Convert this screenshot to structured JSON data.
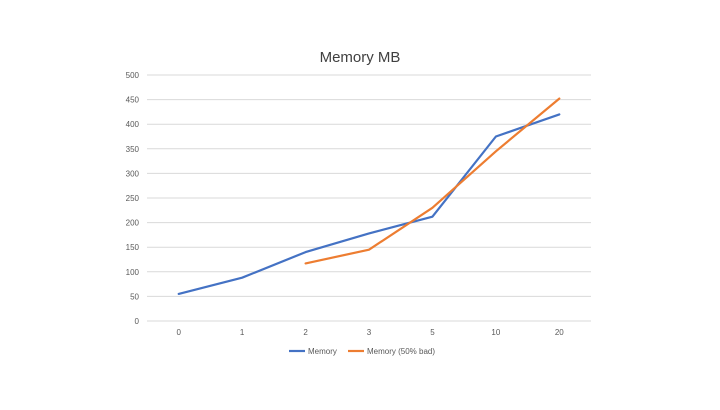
{
  "chart_data": {
    "type": "line",
    "title": "Memory MB",
    "categories": [
      "0",
      "1",
      "2",
      "3",
      "5",
      "10",
      "20"
    ],
    "ylim": [
      0,
      500
    ],
    "yticks": [
      0,
      50,
      100,
      150,
      200,
      250,
      300,
      350,
      400,
      450,
      500
    ],
    "grid": true,
    "legend_position": "bottom",
    "series": [
      {
        "name": "Memory",
        "color": "#4472C4",
        "values": [
          55,
          88,
          140,
          178,
          212,
          375,
          420
        ]
      },
      {
        "name": "Memory (50% bad)",
        "color": "#ED7D31",
        "values": [
          null,
          null,
          117,
          145,
          230,
          345,
          452
        ]
      }
    ]
  }
}
